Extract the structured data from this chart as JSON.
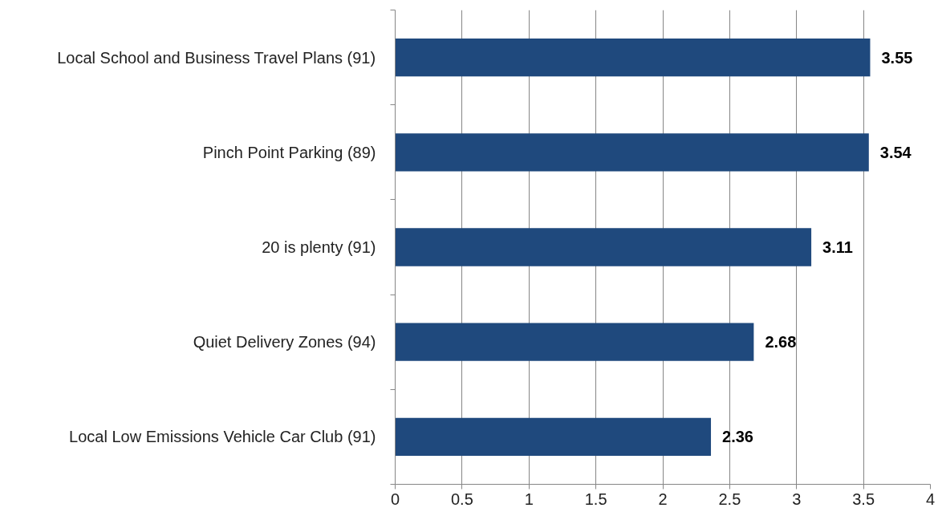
{
  "chart_data": {
    "type": "bar",
    "orientation": "horizontal",
    "categories": [
      "Local School and Business Travel Plans (91)",
      "Pinch Point Parking (89)",
      "20 is plenty (91)",
      "Quiet Delivery Zones (94)",
      "Local Low Emissions Vehicle Car Club (91)"
    ],
    "values": [
      3.55,
      3.54,
      3.11,
      2.68,
      2.36
    ],
    "color": "#1f497d",
    "xlim": [
      0,
      4
    ],
    "xticks": [
      0,
      0.5,
      1,
      1.5,
      2,
      2.5,
      3,
      3.5,
      4
    ],
    "grid": "x",
    "data_labels": true
  }
}
